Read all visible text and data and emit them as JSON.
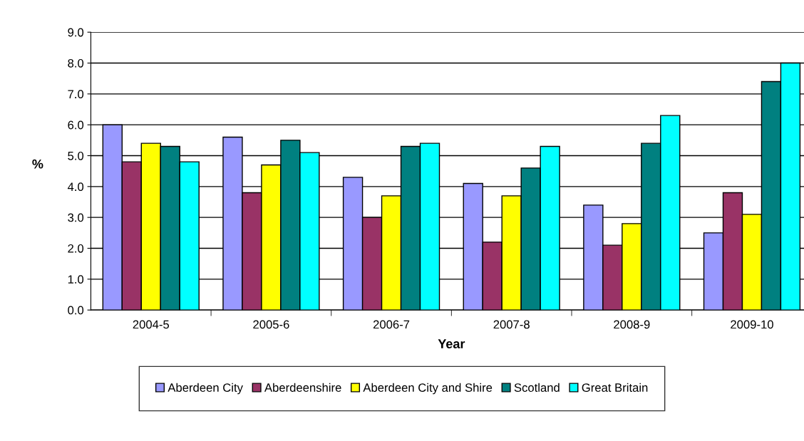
{
  "chart_data": {
    "type": "bar",
    "xlabel": "Year",
    "ylabel": "%",
    "categories": [
      "2004-5",
      "2005-6",
      "2006-7",
      "2007-8",
      "2008-9",
      "2009-10"
    ],
    "series": [
      {
        "name": "Aberdeen City",
        "color": "#9999ff",
        "values": [
          6.0,
          5.6,
          4.3,
          4.1,
          3.4,
          2.5
        ]
      },
      {
        "name": "Aberdeenshire",
        "color": "#993366",
        "values": [
          4.8,
          3.8,
          3.0,
          2.2,
          2.1,
          3.8
        ]
      },
      {
        "name": "Aberdeen City and Shire",
        "color": "#ffff00",
        "values": [
          5.4,
          4.7,
          3.7,
          3.7,
          2.8,
          3.1
        ]
      },
      {
        "name": "Scotland",
        "color": "#008080",
        "values": [
          5.3,
          5.5,
          5.3,
          4.6,
          5.4,
          7.4
        ]
      },
      {
        "name": "Great Britain",
        "color": "#00ffff",
        "values": [
          4.8,
          5.1,
          5.4,
          5.3,
          6.3,
          8.0
        ]
      }
    ],
    "ylim": [
      0,
      9
    ],
    "yticks": [
      {
        "value": 0,
        "label": "0.0"
      },
      {
        "value": 1,
        "label": "1.0"
      },
      {
        "value": 2,
        "label": "2.0"
      },
      {
        "value": 3,
        "label": "3.0"
      },
      {
        "value": 4,
        "label": "4.0"
      },
      {
        "value": 5,
        "label": "5.0"
      },
      {
        "value": 6,
        "label": "6.0"
      },
      {
        "value": 7,
        "label": "7.0"
      },
      {
        "value": 8,
        "label": "8.0"
      },
      {
        "value": 9,
        "label": "9.0"
      }
    ],
    "grid": "y",
    "legend": "bottom"
  }
}
